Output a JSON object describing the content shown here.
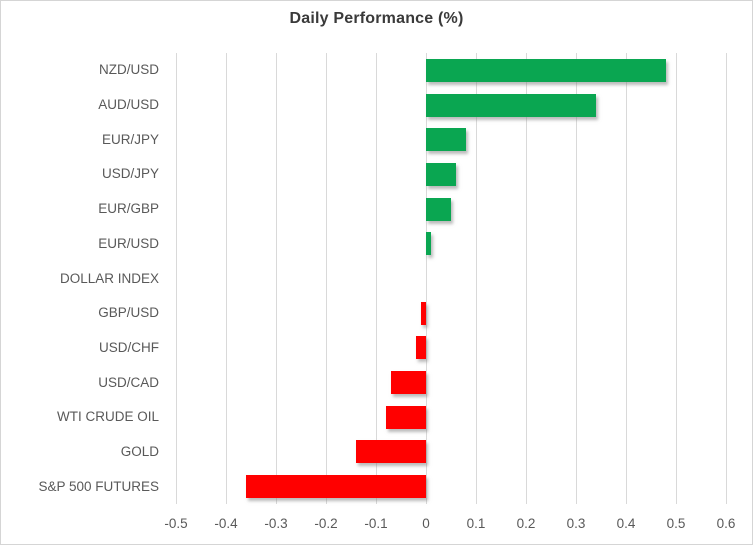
{
  "chart_data": {
    "type": "bar",
    "orientation": "horizontal",
    "title": "Daily Performance (%)",
    "categories": [
      "NZD/USD",
      "AUD/USD",
      "EUR/JPY",
      "USD/JPY",
      "EUR/GBP",
      "EUR/USD",
      "DOLLAR INDEX",
      "GBP/USD",
      "USD/CHF",
      "USD/CAD",
      "WTI CRUDE OIL",
      "GOLD",
      "S&P 500 FUTURES"
    ],
    "values": [
      0.48,
      0.34,
      0.08,
      0.06,
      0.05,
      0.01,
      0.0,
      -0.01,
      -0.02,
      -0.07,
      -0.08,
      -0.14,
      -0.36
    ],
    "xlabel": "",
    "ylabel": "",
    "xlim": [
      -0.5,
      0.6
    ],
    "x_ticks": [
      {
        "value": -0.5,
        "label": "-0.5"
      },
      {
        "value": -0.4,
        "label": "-0.4"
      },
      {
        "value": -0.3,
        "label": "-0.3"
      },
      {
        "value": -0.2,
        "label": "-0.2"
      },
      {
        "value": -0.1,
        "label": "-0.1"
      },
      {
        "value": 0,
        "label": "0"
      },
      {
        "value": 0.1,
        "label": "0.1"
      },
      {
        "value": 0.2,
        "label": "0.2"
      },
      {
        "value": 0.3,
        "label": "0.3"
      },
      {
        "value": 0.4,
        "label": "0.4"
      },
      {
        "value": 0.5,
        "label": "0.5"
      },
      {
        "value": 0.6,
        "label": "0.6"
      }
    ],
    "grid": "vertical",
    "legend": "none",
    "colors": {
      "positive": "#0aa651",
      "negative": "#ff0000",
      "gridline": "#d9d9d9",
      "chart_border": "#d5d5d5",
      "title_text": "#3a3a3a",
      "axis_text": "#595959"
    }
  }
}
